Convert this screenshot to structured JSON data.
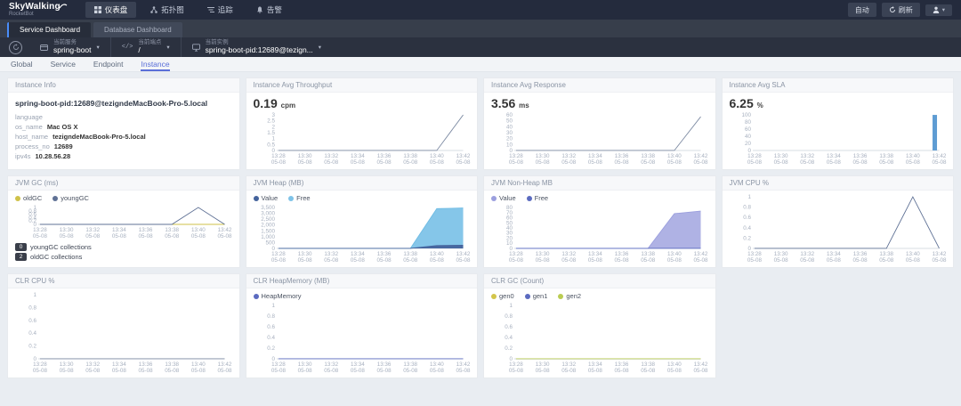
{
  "topbar": {
    "logo_title": "SkyWalking",
    "logo_subtitle": "RocketBot",
    "nav": [
      {
        "label": "仪表盘",
        "icon": "dashboard-icon",
        "active": true
      },
      {
        "label": "拓扑图",
        "icon": "topology-icon",
        "active": false
      },
      {
        "label": "追踪",
        "icon": "trace-icon",
        "active": false
      },
      {
        "label": "告警",
        "icon": "alarm-icon",
        "active": false
      }
    ],
    "auto_label": "自动",
    "refresh_label": "刷新"
  },
  "dashboard_tabs": [
    {
      "label": "Service Dashboard",
      "active": true
    },
    {
      "label": "Database Dashboard",
      "active": false
    }
  ],
  "toolbar": {
    "service": {
      "label": "当前服务",
      "value": "spring-boot"
    },
    "endpoint": {
      "label": "当前端点",
      "value": "/"
    },
    "instance": {
      "label": "当前实例",
      "value": "spring-boot-pid:12689@tezign..."
    }
  },
  "view_tabs": [
    {
      "label": "Global",
      "active": false
    },
    {
      "label": "Service",
      "active": false
    },
    {
      "label": "Endpoint",
      "active": false
    },
    {
      "label": "Instance",
      "active": true
    }
  ],
  "instance_info": {
    "title": "Instance Info",
    "name": "spring-boot-pid:12689@tezigndeMacBook-Pro-5.local",
    "fields": [
      {
        "key": "language",
        "value": ""
      },
      {
        "key": "os_name",
        "value": "Mac OS X"
      },
      {
        "key": "host_name",
        "value": "tezigndeMacBook-Pro-5.local"
      },
      {
        "key": "process_no",
        "value": "12689"
      },
      {
        "key": "ipv4s",
        "value": "10.28.56.28"
      }
    ]
  },
  "jvm_gc_notes": [
    {
      "count": "0",
      "label": "youngGC collections"
    },
    {
      "count": "2",
      "label": "oldGC collections"
    }
  ],
  "icons": {
    "caret_down": "▾",
    "endpoint_glyph": "</>"
  },
  "chart_data": [
    {
      "id": "throughput",
      "type": "line",
      "title": "Instance Avg Throughput",
      "big_value": "0.19",
      "unit": "cpm",
      "x": [
        "13:28",
        "13:30",
        "13:32",
        "13:34",
        "13:36",
        "13:38",
        "13:40",
        "13:42"
      ],
      "date": "05-08",
      "yticks": [
        "0",
        "0.5",
        "1",
        "1.5",
        "2",
        "2.5",
        "3"
      ],
      "ymax": 3,
      "legend": null,
      "series": [
        {
          "name": "throughput",
          "color": "#7d8ba3",
          "values": [
            0,
            0,
            0,
            0,
            0,
            0,
            0,
            3
          ]
        }
      ]
    },
    {
      "id": "response",
      "type": "line",
      "title": "Instance Avg Response",
      "big_value": "3.56",
      "unit": "ms",
      "x": [
        "13:28",
        "13:30",
        "13:32",
        "13:34",
        "13:36",
        "13:38",
        "13:40",
        "13:42"
      ],
      "date": "05-08",
      "yticks": [
        "0",
        "10",
        "20",
        "30",
        "40",
        "50",
        "60"
      ],
      "ymax": 60,
      "legend": null,
      "series": [
        {
          "name": "response",
          "color": "#7d8ba3",
          "values": [
            0,
            0,
            0,
            0,
            0,
            0,
            0,
            57
          ]
        }
      ]
    },
    {
      "id": "sla",
      "type": "bar",
      "title": "Instance Avg SLA",
      "big_value": "6.25",
      "unit": "%",
      "x": [
        "13:28",
        "13:30",
        "13:32",
        "13:34",
        "13:36",
        "13:38",
        "13:40",
        "13:42"
      ],
      "date": "05-08",
      "yticks": [
        "0",
        "20",
        "40",
        "60",
        "80",
        "100"
      ],
      "ymax": 100,
      "legend": null,
      "series": [
        {
          "name": "sla",
          "color": "#5e9cd3",
          "values": [
            0,
            0,
            0,
            0,
            0,
            0,
            0,
            100
          ]
        }
      ]
    },
    {
      "id": "jvm_gc",
      "type": "line",
      "title": "JVM GC (ms)",
      "x": [
        "13:28",
        "13:30",
        "13:32",
        "13:34",
        "13:36",
        "13:38",
        "13:40",
        "13:42"
      ],
      "date": "05-08",
      "yticks": [
        "0",
        "0.2",
        "0.4",
        "0.6",
        "0.8",
        "1"
      ],
      "ymax": 1,
      "legend": [
        {
          "name": "oldGC",
          "color": "#cfc24a"
        },
        {
          "name": "youngGC",
          "color": "#5f7195"
        }
      ],
      "series": [
        {
          "name": "oldGC",
          "color": "#cfc24a",
          "values": [
            0,
            0,
            0,
            0,
            0,
            0,
            0,
            0
          ]
        },
        {
          "name": "youngGC",
          "color": "#5f7195",
          "values": [
            0,
            0,
            0,
            0,
            0,
            0,
            1,
            0
          ]
        }
      ]
    },
    {
      "id": "jvm_heap",
      "type": "area",
      "title": "JVM Heap (MB)",
      "x": [
        "13:28",
        "13:30",
        "13:32",
        "13:34",
        "13:36",
        "13:38",
        "13:40",
        "13:42"
      ],
      "date": "05-08",
      "yticks": [
        "0",
        "500",
        "1,000",
        "1,500",
        "2,000",
        "2,500",
        "3,000",
        "3,500"
      ],
      "ymax": 3500,
      "legend": [
        {
          "name": "Value",
          "color": "#44639c"
        },
        {
          "name": "Free",
          "color": "#7ec3e8"
        }
      ],
      "series": [
        {
          "name": "Free",
          "color": "#6fbce4",
          "fill": "#7ec3e8",
          "values": [
            0,
            0,
            0,
            0,
            0,
            0,
            3400,
            3460
          ]
        },
        {
          "name": "Value",
          "color": "#44639c",
          "fill": "#44639c",
          "values": [
            0,
            0,
            0,
            0,
            0,
            0,
            240,
            265
          ]
        }
      ]
    },
    {
      "id": "jvm_nonheap",
      "type": "area",
      "title": "JVM Non-Heap MB",
      "x": [
        "13:28",
        "13:30",
        "13:32",
        "13:34",
        "13:36",
        "13:38",
        "13:40",
        "13:42"
      ],
      "date": "05-08",
      "yticks": [
        "0",
        "10",
        "20",
        "30",
        "40",
        "50",
        "60",
        "70",
        "80"
      ],
      "ymax": 80,
      "legend": [
        {
          "name": "Value",
          "color": "#9b9fde"
        },
        {
          "name": "Free",
          "color": "#5b6bc0"
        }
      ],
      "series": [
        {
          "name": "Value",
          "color": "#9b9fde",
          "fill": "#abaee3",
          "values": [
            0,
            0,
            0,
            0,
            0,
            0,
            68,
            73
          ]
        },
        {
          "name": "Free",
          "color": "#5b6bc0",
          "values": [
            0,
            0,
            0,
            0,
            0,
            0,
            0,
            0
          ]
        }
      ]
    },
    {
      "id": "jvm_cpu",
      "type": "line",
      "title": "JVM CPU %",
      "x": [
        "13:28",
        "13:30",
        "13:32",
        "13:34",
        "13:36",
        "13:38",
        "13:40",
        "13:42"
      ],
      "date": "05-08",
      "yticks": [
        "0",
        "0.2",
        "0.4",
        "0.6",
        "0.8",
        "1"
      ],
      "ymax": 1,
      "legend": null,
      "series": [
        {
          "name": "cpu",
          "color": "#5f7195",
          "values": [
            0,
            0,
            0,
            0,
            0,
            0,
            1,
            0
          ]
        }
      ]
    },
    {
      "id": "clr_cpu",
      "type": "line",
      "title": "CLR CPU %",
      "x": [
        "13:28",
        "13:30",
        "13:32",
        "13:34",
        "13:36",
        "13:38",
        "13:40",
        "13:42"
      ],
      "date": "05-08",
      "yticks": [
        "0",
        "0.2",
        "0.4",
        "0.6",
        "0.8",
        "1"
      ],
      "ymax": 1,
      "legend": null,
      "series": [
        {
          "name": "clr-cpu",
          "color": "#7d8ba3",
          "values": [
            0,
            0,
            0,
            0,
            0,
            0,
            0,
            0
          ]
        }
      ]
    },
    {
      "id": "clr_heap",
      "type": "line",
      "title": "CLR HeapMemory (MB)",
      "x": [
        "13:28",
        "13:30",
        "13:32",
        "13:34",
        "13:36",
        "13:38",
        "13:40",
        "13:42"
      ],
      "date": "05-08",
      "yticks": [
        "0",
        "0.2",
        "0.4",
        "0.6",
        "0.8",
        "1"
      ],
      "ymax": 1,
      "legend": [
        {
          "name": "HeapMemory",
          "color": "#5b6bc0"
        }
      ],
      "series": [
        {
          "name": "HeapMemory",
          "color": "#5b6bc0",
          "values": [
            0,
            0,
            0,
            0,
            0,
            0,
            0,
            0
          ]
        }
      ]
    },
    {
      "id": "clr_gc",
      "type": "line",
      "title": "CLR GC (Count)",
      "x": [
        "13:28",
        "13:30",
        "13:32",
        "13:34",
        "13:36",
        "13:38",
        "13:40",
        "13:42"
      ],
      "date": "05-08",
      "yticks": [
        "0",
        "0.2",
        "0.4",
        "0.6",
        "0.8",
        "1"
      ],
      "ymax": 1,
      "legend": [
        {
          "name": "gen0",
          "color": "#d3c54a"
        },
        {
          "name": "gen1",
          "color": "#5b6bc0"
        },
        {
          "name": "gen2",
          "color": "#bacc52"
        }
      ],
      "series": [
        {
          "name": "gen0",
          "color": "#d3c54a",
          "values": [
            0,
            0,
            0,
            0,
            0,
            0,
            0,
            0
          ]
        },
        {
          "name": "gen1",
          "color": "#5b6bc0",
          "values": [
            0,
            0,
            0,
            0,
            0,
            0,
            0,
            0
          ]
        },
        {
          "name": "gen2",
          "color": "#bacc52",
          "values": [
            0,
            0,
            0,
            0,
            0,
            0,
            0,
            0
          ]
        }
      ]
    }
  ]
}
